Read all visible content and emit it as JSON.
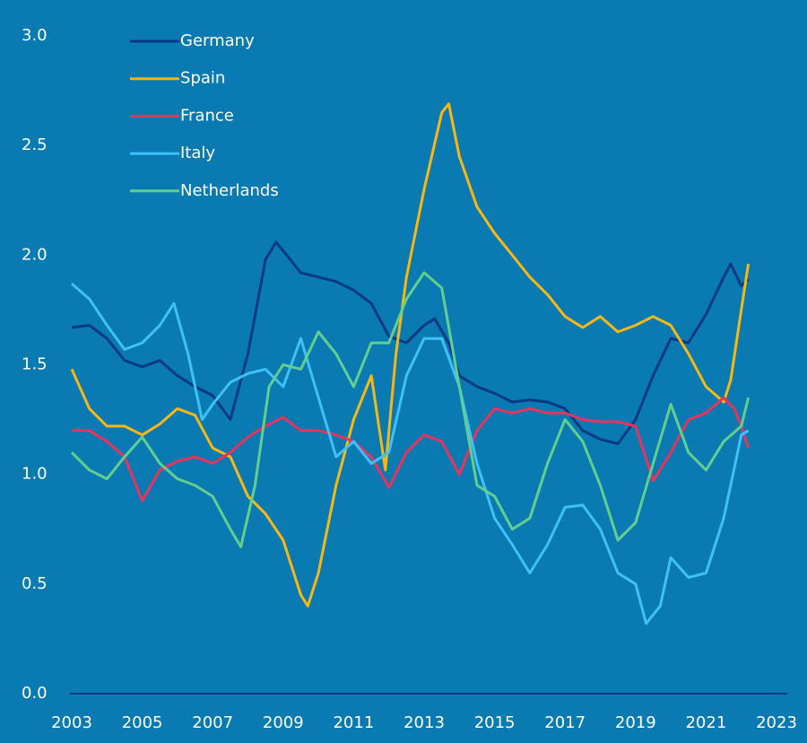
{
  "chart_data": {
    "type": "line",
    "xlim": [
      2003,
      2023
    ],
    "xticks": [
      2003,
      2005,
      2007,
      2009,
      2011,
      2013,
      2015,
      2017,
      2019,
      2021,
      2023
    ],
    "ylim": [
      0,
      3
    ],
    "yticks": [
      {
        "value": 0,
        "label": "0.0"
      },
      0.5,
      {
        "value": 1,
        "label": "1.0"
      },
      1.5,
      {
        "value": 2,
        "label": "2.0"
      },
      2.5,
      {
        "value": 3,
        "label": "3.0"
      }
    ],
    "grid": false,
    "legend": "top-left",
    "series": [
      {
        "name": "Germany",
        "color": "#063a82",
        "x": [
          2003,
          2003.5,
          2004,
          2004.5,
          2005,
          2005.5,
          2006,
          2006.5,
          2007,
          2007.5,
          2008,
          2008.5,
          2008.8,
          2009,
          2009.5,
          2010,
          2010.5,
          2011,
          2011.5,
          2012,
          2012.5,
          2013,
          2013.3,
          2013.7,
          2014,
          2014.5,
          2015,
          2015.5,
          2016,
          2016.5,
          2017,
          2017.5,
          2018,
          2018.5,
          2019,
          2019.5,
          2020,
          2020.5,
          2021,
          2021.5,
          2021.7,
          2022,
          2022.2
        ],
        "values": [
          1.67,
          1.68,
          1.62,
          1.52,
          1.49,
          1.52,
          1.45,
          1.4,
          1.36,
          1.25,
          1.55,
          1.98,
          2.06,
          2.02,
          1.92,
          1.9,
          1.88,
          1.84,
          1.78,
          1.63,
          1.6,
          1.68,
          1.71,
          1.6,
          1.45,
          1.4,
          1.37,
          1.33,
          1.34,
          1.33,
          1.3,
          1.2,
          1.16,
          1.14,
          1.25,
          1.45,
          1.62,
          1.6,
          1.73,
          1.9,
          1.96,
          1.86,
          1.89
        ]
      },
      {
        "name": "Spain",
        "color": "#f8b712",
        "x": [
          2003,
          2003.5,
          2004,
          2004.5,
          2005,
          2005.5,
          2006,
          2006.5,
          2007,
          2007.5,
          2008,
          2008.5,
          2009,
          2009.5,
          2009.7,
          2010,
          2010.5,
          2011,
          2011.5,
          2011.9,
          2012.2,
          2012.5,
          2013,
          2013.5,
          2013.7,
          2014,
          2014.5,
          2015,
          2015.5,
          2016,
          2016.5,
          2017,
          2017.5,
          2018,
          2018.5,
          2019,
          2019.5,
          2020,
          2020.5,
          2021,
          2021.5,
          2021.7,
          2022,
          2022.2
        ],
        "values": [
          1.48,
          1.3,
          1.22,
          1.22,
          1.18,
          1.23,
          1.3,
          1.27,
          1.12,
          1.08,
          0.9,
          0.82,
          0.7,
          0.45,
          0.4,
          0.55,
          0.95,
          1.25,
          1.45,
          1.02,
          1.55,
          1.9,
          2.3,
          2.65,
          2.69,
          2.45,
          2.22,
          2.1,
          2.0,
          1.9,
          1.82,
          1.72,
          1.67,
          1.72,
          1.65,
          1.68,
          1.72,
          1.68,
          1.55,
          1.4,
          1.33,
          1.43,
          1.75,
          1.96
        ]
      },
      {
        "name": "France",
        "color": "#e8335d",
        "x": [
          2003,
          2003.5,
          2004,
          2004.5,
          2005,
          2005.5,
          2006,
          2006.5,
          2007,
          2007.5,
          2008,
          2008.5,
          2009,
          2009.5,
          2010,
          2010.5,
          2011,
          2011.5,
          2012,
          2012.5,
          2013,
          2013.5,
          2014,
          2014.5,
          2015,
          2015.5,
          2016,
          2016.5,
          2017,
          2017.5,
          2018,
          2018.5,
          2019,
          2019.5,
          2020,
          2020.5,
          2021,
          2021.5,
          2021.8,
          2022,
          2022.2
        ],
        "values": [
          1.2,
          1.2,
          1.15,
          1.08,
          0.88,
          1.02,
          1.06,
          1.08,
          1.05,
          1.1,
          1.17,
          1.22,
          1.26,
          1.2,
          1.2,
          1.18,
          1.15,
          1.08,
          0.94,
          1.1,
          1.18,
          1.15,
          1.0,
          1.2,
          1.3,
          1.28,
          1.3,
          1.28,
          1.28,
          1.25,
          1.24,
          1.24,
          1.22,
          0.97,
          1.1,
          1.25,
          1.28,
          1.35,
          1.3,
          1.22,
          1.12
        ]
      },
      {
        "name": "Italy",
        "color": "#3fc1f7",
        "x": [
          2003,
          2003.5,
          2004,
          2004.5,
          2005,
          2005.5,
          2005.9,
          2006.3,
          2006.7,
          2007,
          2007.5,
          2008,
          2008.5,
          2009,
          2009.5,
          2010,
          2010.5,
          2011,
          2011.5,
          2012,
          2012.5,
          2013,
          2013.5,
          2014,
          2014.5,
          2015,
          2015.5,
          2016,
          2016.5,
          2017,
          2017.5,
          2018,
          2018.5,
          2019,
          2019.3,
          2019.7,
          2020,
          2020.5,
          2021,
          2021.5,
          2022,
          2022.2
        ],
        "values": [
          1.87,
          1.8,
          1.68,
          1.57,
          1.6,
          1.68,
          1.78,
          1.55,
          1.25,
          1.32,
          1.42,
          1.46,
          1.48,
          1.4,
          1.62,
          1.35,
          1.08,
          1.15,
          1.05,
          1.1,
          1.45,
          1.62,
          1.62,
          1.4,
          1.05,
          0.8,
          0.68,
          0.55,
          0.68,
          0.85,
          0.86,
          0.75,
          0.55,
          0.5,
          0.32,
          0.4,
          0.62,
          0.53,
          0.55,
          0.8,
          1.18,
          1.2
        ]
      },
      {
        "name": "Netherlands",
        "color": "#62cf8f",
        "x": [
          2003,
          2003.5,
          2004,
          2004.5,
          2005,
          2005.5,
          2006,
          2006.5,
          2007,
          2007.5,
          2007.8,
          2008.2,
          2008.6,
          2009,
          2009.5,
          2010,
          2010.5,
          2011,
          2011.5,
          2012,
          2012.5,
          2013,
          2013.5,
          2014,
          2014.5,
          2015,
          2015.5,
          2016,
          2016.5,
          2017,
          2017.5,
          2018,
          2018.5,
          2019,
          2019.5,
          2020,
          2020.5,
          2021,
          2021.5,
          2022,
          2022.2
        ],
        "values": [
          1.1,
          1.02,
          0.98,
          1.08,
          1.17,
          1.05,
          0.98,
          0.95,
          0.9,
          0.75,
          0.67,
          0.95,
          1.4,
          1.5,
          1.48,
          1.65,
          1.55,
          1.4,
          1.6,
          1.6,
          1.8,
          1.92,
          1.85,
          1.4,
          0.95,
          0.9,
          0.75,
          0.8,
          1.05,
          1.25,
          1.15,
          0.95,
          0.7,
          0.78,
          1.05,
          1.32,
          1.1,
          1.02,
          1.15,
          1.22,
          1.35
        ]
      }
    ]
  }
}
